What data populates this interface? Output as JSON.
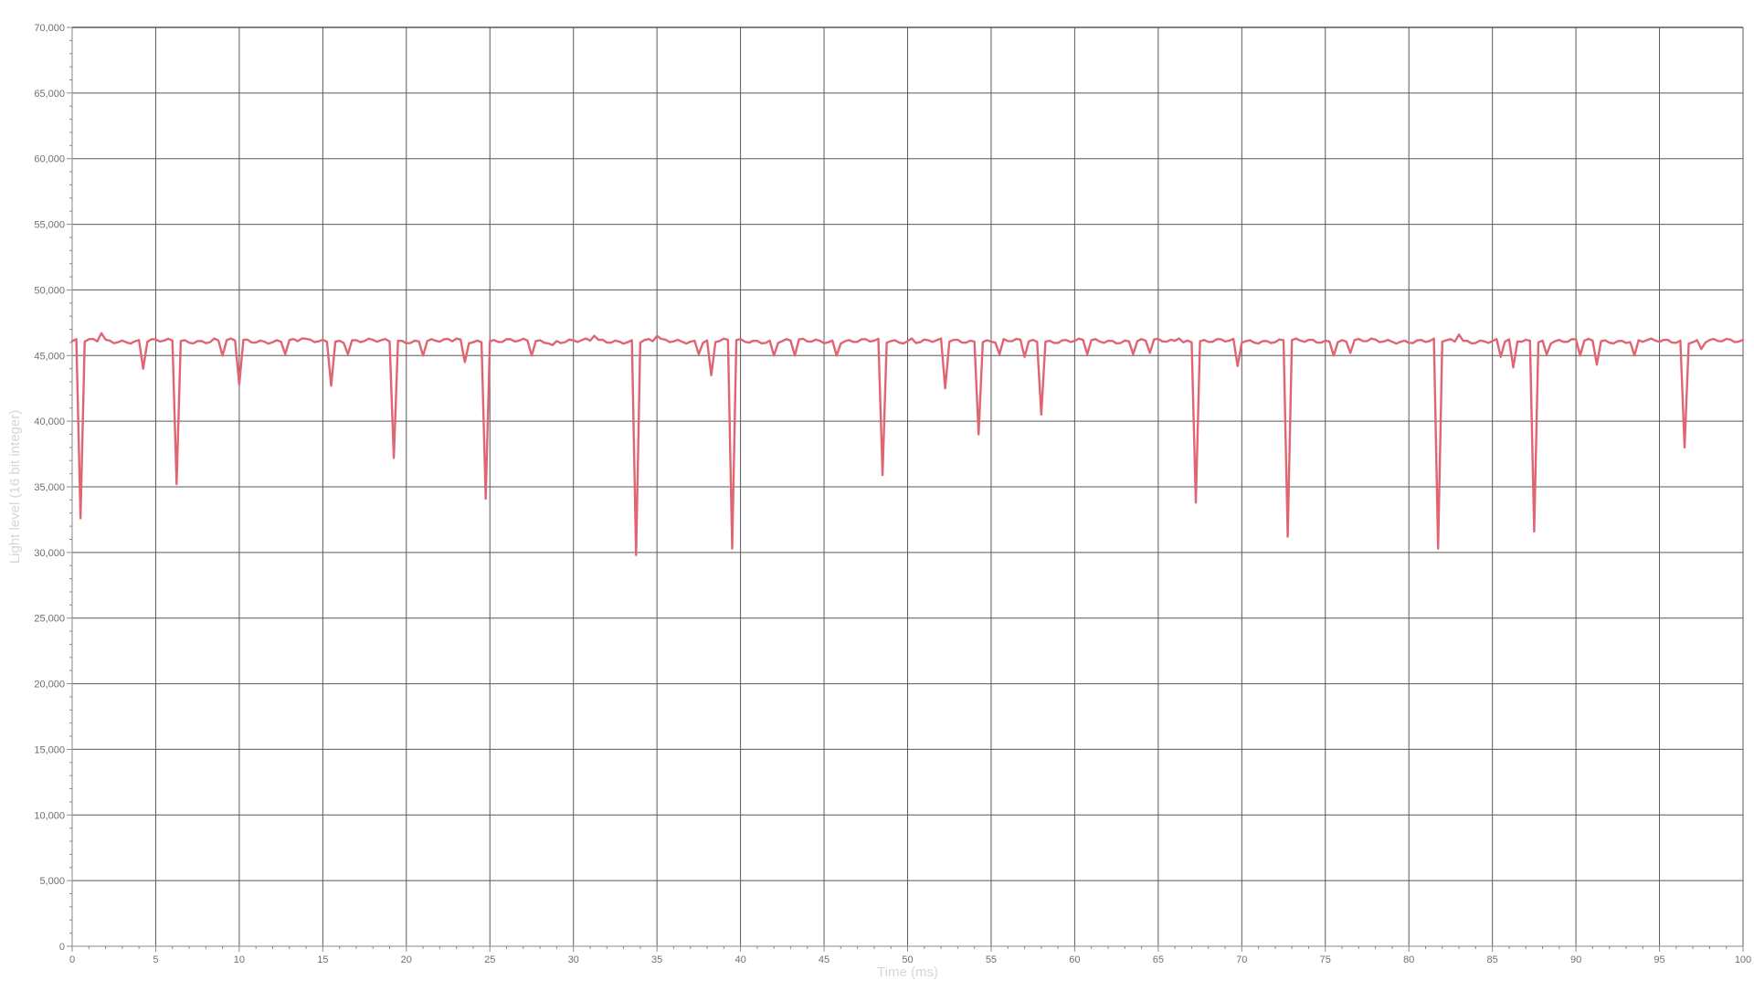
{
  "chart_data": {
    "type": "line",
    "title": "",
    "xlabel": "Time (ms)",
    "ylabel": "Light level (16 bit integer)",
    "xlim": [
      0,
      100
    ],
    "ylim": [
      0,
      70000
    ],
    "x_ticks": [
      0,
      5,
      10,
      15,
      20,
      25,
      30,
      35,
      40,
      45,
      50,
      55,
      60,
      65,
      70,
      75,
      80,
      85,
      90,
      95,
      100
    ],
    "x_tick_labels": [
      "0",
      "5",
      "10",
      "15",
      "20",
      "25",
      "30",
      "35",
      "40",
      "45",
      "50",
      "55",
      "60",
      "65",
      "70",
      "75",
      "80",
      "85",
      "90",
      "95",
      "100"
    ],
    "y_ticks": [
      0,
      5000,
      10000,
      15000,
      20000,
      25000,
      30000,
      35000,
      40000,
      45000,
      50000,
      55000,
      60000,
      65000,
      70000
    ],
    "y_tick_labels": [
      "0",
      "5,000",
      "10,000",
      "15,000",
      "20,000",
      "25,000",
      "30,000",
      "35,000",
      "40,000",
      "45,000",
      "50,000",
      "55,000",
      "60,000",
      "65,000",
      "70,000"
    ],
    "grid": true,
    "legend": "none",
    "colors": {
      "line": "#e06472",
      "grid": "#595959",
      "axis": "#8a8a8a"
    },
    "series": [
      {
        "baseline": 46100,
        "sample_spacing": 0.25,
        "dips": [
          [
            0.6,
            32600
          ],
          [
            4.3,
            44000
          ],
          [
            6.2,
            35200
          ],
          [
            9.0,
            45000
          ],
          [
            10.0,
            42800
          ],
          [
            12.7,
            45100
          ],
          [
            15.4,
            42700
          ],
          [
            16.4,
            45100
          ],
          [
            19.2,
            37200
          ],
          [
            21.0,
            45000
          ],
          [
            23.6,
            44500
          ],
          [
            24.8,
            34100
          ],
          [
            27.4,
            45000
          ],
          [
            28.7,
            45800
          ],
          [
            33.8,
            29800
          ],
          [
            37.5,
            45100
          ],
          [
            38.3,
            43500
          ],
          [
            39.4,
            30300
          ],
          [
            42.0,
            45000
          ],
          [
            43.2,
            45000
          ],
          [
            45.8,
            45000
          ],
          [
            48.6,
            35900
          ],
          [
            52.3,
            42500
          ],
          [
            54.2,
            39000
          ],
          [
            55.4,
            45100
          ],
          [
            57.0,
            44900
          ],
          [
            57.9,
            40500
          ],
          [
            60.7,
            45100
          ],
          [
            63.4,
            45100
          ],
          [
            64.4,
            45200
          ],
          [
            67.2,
            33800
          ],
          [
            69.8,
            44200
          ],
          [
            72.8,
            31200
          ],
          [
            75.5,
            45000
          ],
          [
            76.5,
            45200
          ],
          [
            81.8,
            30300
          ],
          [
            85.5,
            44900
          ],
          [
            86.3,
            44100
          ],
          [
            87.5,
            31600
          ],
          [
            88.2,
            45100
          ],
          [
            90.2,
            45000
          ],
          [
            91.3,
            44300
          ],
          [
            93.5,
            45000
          ],
          [
            96.6,
            38000
          ],
          [
            97.5,
            45500
          ]
        ],
        "bumps": [
          [
            1.7,
            46700
          ],
          [
            31.2,
            46500
          ],
          [
            34.9,
            46500
          ],
          [
            82.9,
            46600
          ],
          [
            8.5,
            46300
          ],
          [
            13.7,
            46300
          ],
          [
            23.1,
            46300
          ],
          [
            50.3,
            46300
          ],
          [
            66.2,
            46300
          ],
          [
            77.8,
            46300
          ]
        ]
      }
    ]
  }
}
